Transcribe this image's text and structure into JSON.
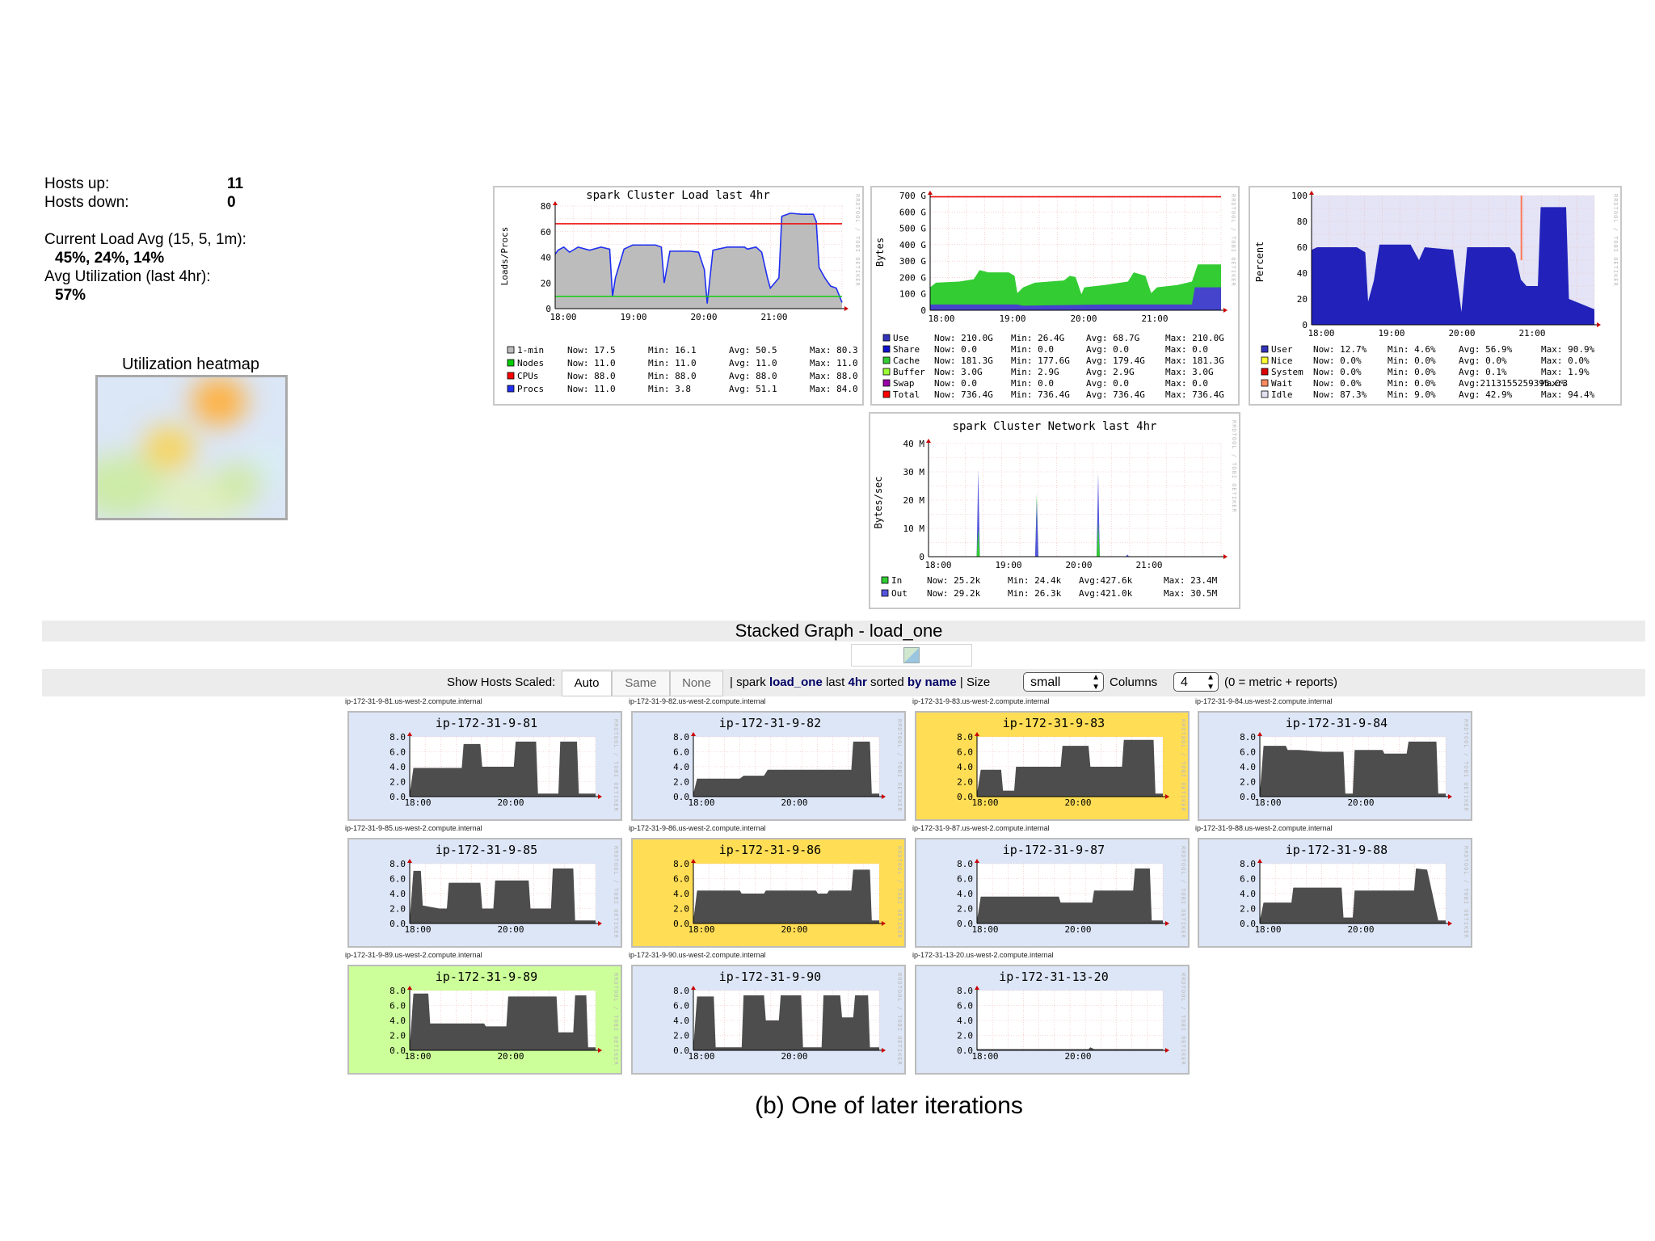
{
  "summary": {
    "hosts_up_label": "Hosts up:",
    "hosts_up_value": "11",
    "hosts_down_label": "Hosts down:",
    "hosts_down_value": "0",
    "load_label": "Current Load Avg (15, 5, 1m):",
    "load_value": "45%, 24%, 14%",
    "util_label": "Avg Utilization (last 4hr):",
    "util_value": "57%",
    "heatmap_title": "Utilization heatmap"
  },
  "load_graph": {
    "title": "spark Cluster Load last 4hr",
    "ylabel": "Loads/Procs",
    "yticks": [
      "0",
      "20",
      "40",
      "60",
      "80"
    ],
    "xticks": [
      "18:00",
      "19:00",
      "20:00",
      "21:00"
    ],
    "watermark": "RRDTOOL / TOBI OETIKER",
    "legend": [
      {
        "color": "#bbbbbb",
        "name": "1-min",
        "now": "Now: 17.5",
        "min": "Min: 16.1",
        "avg": "Avg: 50.5",
        "max": "Max: 80.3"
      },
      {
        "color": "#00cc00",
        "name": "Nodes",
        "now": "Now: 11.0",
        "min": "Min: 11.0",
        "avg": "Avg: 11.0",
        "max": "Max: 11.0"
      },
      {
        "color": "#ff0000",
        "name": "CPUs",
        "now": "Now: 88.0",
        "min": "Min: 88.0",
        "avg": "Avg: 88.0",
        "max": "Max: 88.0"
      },
      {
        "color": "#2030f0",
        "name": "Procs",
        "now": "Now: 11.0",
        "min": "Min: 3.8",
        "avg": "Avg: 51.1",
        "max": "Max: 84.0"
      }
    ]
  },
  "memory_graph": {
    "ylabel": "Bytes",
    "yticks": [
      "0",
      "100 G",
      "200 G",
      "300 G",
      "400 G",
      "500 G",
      "600 G",
      "700 G"
    ],
    "xticks": [
      "18:00",
      "19:00",
      "20:00",
      "21:00"
    ],
    "legend": [
      {
        "color": "#3333bb",
        "name": "Use",
        "now": "Now: 210.0G",
        "min": "Min: 26.4G",
        "avg": "Avg: 68.7G",
        "max": "Max: 210.0G"
      },
      {
        "color": "#1111cc",
        "name": "Share",
        "now": "Now: 0.0",
        "min": "Min: 0.0",
        "avg": "Avg: 0.0",
        "max": "Max: 0.0"
      },
      {
        "color": "#33cc33",
        "name": "Cache",
        "now": "Now: 181.3G",
        "min": "Min: 177.6G",
        "avg": "Avg: 179.4G",
        "max": "Max: 181.3G"
      },
      {
        "color": "#99ff33",
        "name": "Buffer",
        "now": "Now: 3.0G",
        "min": "Min: 2.9G",
        "avg": "Avg: 2.9G",
        "max": "Max: 3.0G"
      },
      {
        "color": "#9900aa",
        "name": "Swap",
        "now": "Now: 0.0",
        "min": "Min: 0.0",
        "avg": "Avg: 0.0",
        "max": "Max: 0.0"
      },
      {
        "color": "#ff0000",
        "name": "Total",
        "now": "Now: 736.4G",
        "min": "Min: 736.4G",
        "avg": "Avg: 736.4G",
        "max": "Max: 736.4G"
      }
    ]
  },
  "cpu_graph": {
    "ylabel": "Percent",
    "yticks": [
      "0",
      "20",
      "40",
      "60",
      "80",
      "100"
    ],
    "xticks": [
      "18:00",
      "19:00",
      "20:00",
      "21:00"
    ],
    "legend": [
      {
        "color": "#3333bb",
        "name": "User",
        "now": "Now: 12.7%",
        "min": "Min: 4.6%",
        "avg": "Avg: 56.9%",
        "max": "Max: 90.9%"
      },
      {
        "color": "#ffff33",
        "name": "Nice",
        "now": "Now: 0.0%",
        "min": "Min: 0.0%",
        "avg": "Avg: 0.0%",
        "max": "Max: 0.0%"
      },
      {
        "color": "#dd0000",
        "name": "System",
        "now": "Now: 0.0%",
        "min": "Min: 0.0%",
        "avg": "Avg: 0.1%",
        "max": "Max: 1.9%"
      },
      {
        "color": "#ff8a60",
        "name": "Wait",
        "now": "Now: 0.0%",
        "min": "Min: 0.0%",
        "avg": "Avg:2113155259395.0%",
        "max": "Max:3"
      },
      {
        "color": "#e2e2f2",
        "name": "Idle",
        "now": "Now: 87.3%",
        "min": "Min: 9.0%",
        "avg": "Avg: 42.9%",
        "max": "Max: 94.4%"
      }
    ]
  },
  "network_graph": {
    "title": "spark Cluster Network last 4hr",
    "ylabel": "Bytes/sec",
    "yticks": [
      "0",
      "10 M",
      "20 M",
      "30 M",
      "40 M"
    ],
    "xticks": [
      "18:00",
      "19:00",
      "20:00",
      "21:00"
    ],
    "legend": [
      {
        "color": "#33cc33",
        "name": "In",
        "now": "Now: 25.2k",
        "min": "Min: 24.4k",
        "avg": "Avg:427.6k",
        "max": "Max: 23.4M"
      },
      {
        "color": "#5555dd",
        "name": "Out",
        "now": "Now: 29.2k",
        "min": "Min: 26.3k",
        "avg": "Avg:421.0k",
        "max": "Max: 30.5M"
      }
    ]
  },
  "stacked": {
    "title": "Stacked Graph - load_one",
    "show_hosts_label": "Show Hosts Scaled:",
    "btn_auto": "Auto",
    "btn_same": "Same",
    "btn_none": "None",
    "sep1": "|",
    "prefix": "spark",
    "metric": "load_one",
    "last_word": "last",
    "range": "4hr",
    "sorted_word": "sorted",
    "by_name": "by name",
    "sep2": "|",
    "size_label": "Size",
    "size_value": "small",
    "columns_label": "Columns",
    "columns_value": "4",
    "note": "(0 = metric + reports)"
  },
  "host_axes": {
    "yticks": [
      "0.0",
      "2.0",
      "4.0",
      "6.0",
      "8.0"
    ],
    "xticks": [
      "18:00",
      "20:00"
    ]
  },
  "hosts": [
    {
      "fqdn": "ip-172-31-9-81.us-west-2.compute.internal",
      "name": "ip-172-31-9-81",
      "bg": "#dde6f7"
    },
    {
      "fqdn": "ip-172-31-9-82.us-west-2.compute.internal",
      "name": "ip-172-31-9-82",
      "bg": "#dde6f7"
    },
    {
      "fqdn": "ip-172-31-9-83.us-west-2.compute.internal",
      "name": "ip-172-31-9-83",
      "bg": "#ffdd55"
    },
    {
      "fqdn": "ip-172-31-9-84.us-west-2.compute.internal",
      "name": "ip-172-31-9-84",
      "bg": "#dde6f7"
    },
    {
      "fqdn": "ip-172-31-9-85.us-west-2.compute.internal",
      "name": "ip-172-31-9-85",
      "bg": "#dde6f7"
    },
    {
      "fqdn": "ip-172-31-9-86.us-west-2.compute.internal",
      "name": "ip-172-31-9-86",
      "bg": "#ffdd55"
    },
    {
      "fqdn": "ip-172-31-9-87.us-west-2.compute.internal",
      "name": "ip-172-31-9-87",
      "bg": "#dde6f7"
    },
    {
      "fqdn": "ip-172-31-9-88.us-west-2.compute.internal",
      "name": "ip-172-31-9-88",
      "bg": "#dde6f7"
    },
    {
      "fqdn": "ip-172-31-9-89.us-west-2.compute.internal",
      "name": "ip-172-31-9-89",
      "bg": "#ccff99"
    },
    {
      "fqdn": "ip-172-31-9-90.us-west-2.compute.internal",
      "name": "ip-172-31-9-90",
      "bg": "#dde6f7"
    },
    {
      "fqdn": "ip-172-31-13-20.us-west-2.compute.internal",
      "name": "ip-172-31-13-20",
      "bg": "#dde6f7"
    }
  ],
  "caption": "(b) One of later iterations"
}
